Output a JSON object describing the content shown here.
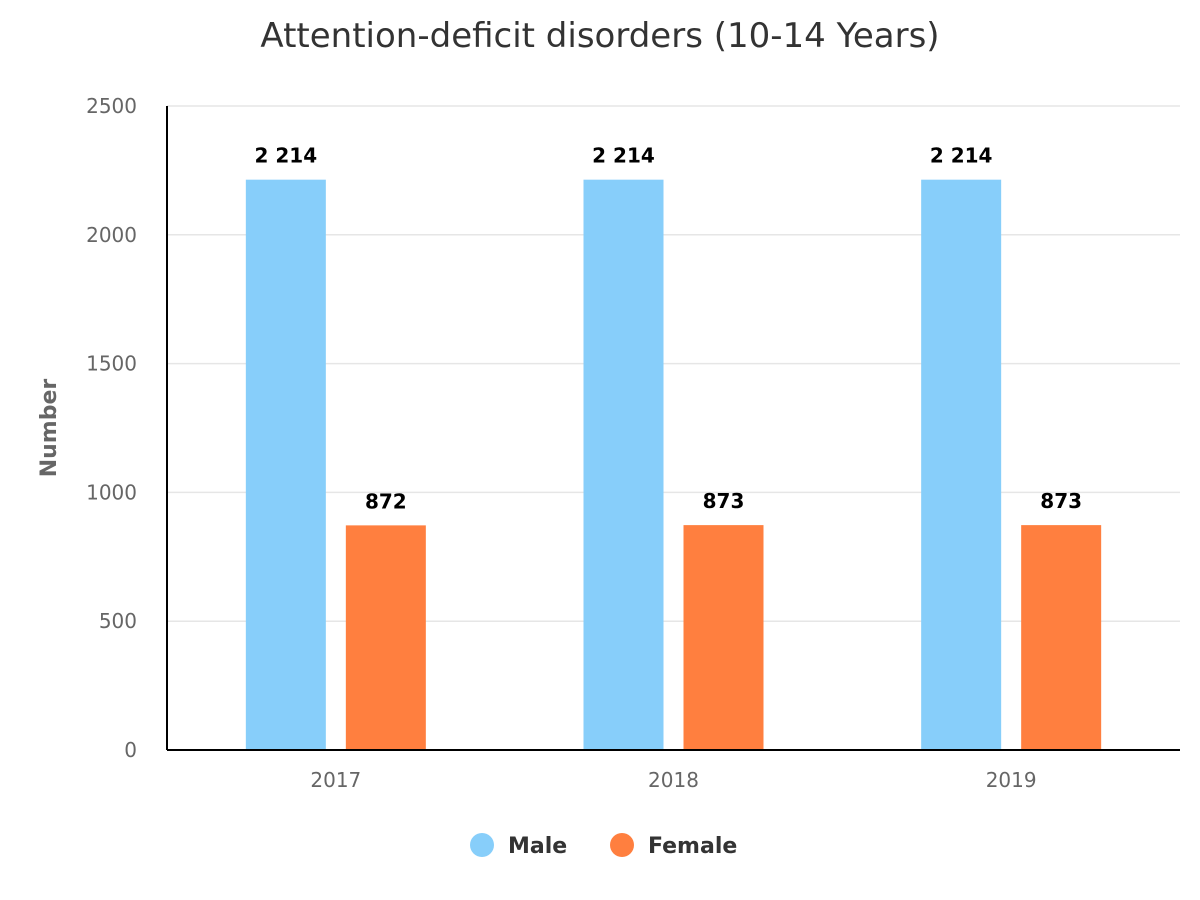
{
  "chart_data": {
    "type": "bar",
    "title": "Attention-deficit disorders (10-14 Years)",
    "xlabel": "",
    "ylabel": "Number",
    "categories": [
      "2017",
      "2018",
      "2019"
    ],
    "series": [
      {
        "name": "Male",
        "color": "#87cefa",
        "values": [
          2214,
          2214,
          2214
        ],
        "labels": [
          "2 214",
          "2 214",
          "2 214"
        ]
      },
      {
        "name": "Female",
        "color": "#ff7f3f",
        "values": [
          872,
          873,
          873
        ],
        "labels": [
          "872",
          "873",
          "873"
        ]
      }
    ],
    "ylim": [
      0,
      2500
    ],
    "yticks": [
      0,
      500,
      1000,
      1500,
      2000,
      2500
    ],
    "grid": true,
    "legend_position": "bottom"
  }
}
